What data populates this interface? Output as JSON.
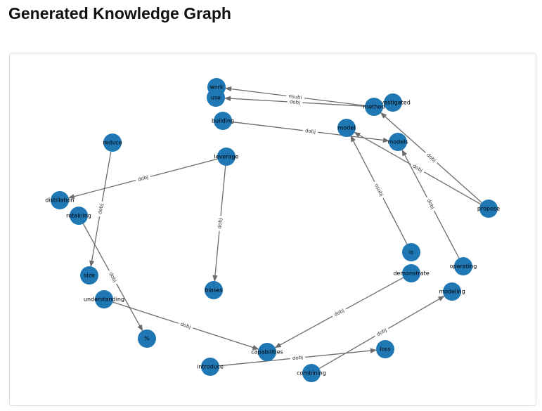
{
  "page": {
    "title": "Generated Knowledge Graph"
  },
  "graph": {
    "colors": {
      "node": "#1f77b4",
      "edge": "#6b6b6b"
    },
    "nodes": [
      {
        "id": "work",
        "label": "work"
      },
      {
        "id": "use",
        "label": "use"
      },
      {
        "id": "investigated",
        "label": "investigated"
      },
      {
        "id": "method",
        "label": "method"
      },
      {
        "id": "building",
        "label": "building"
      },
      {
        "id": "model",
        "label": "model"
      },
      {
        "id": "models",
        "label": "models"
      },
      {
        "id": "reduce",
        "label": "reduce"
      },
      {
        "id": "leverage",
        "label": "leverage"
      },
      {
        "id": "distillation",
        "label": "distillation"
      },
      {
        "id": "retaining",
        "label": "retaining"
      },
      {
        "id": "propose",
        "label": "propose"
      },
      {
        "id": "is",
        "label": "is"
      },
      {
        "id": "demonstrate",
        "label": "demonstrate"
      },
      {
        "id": "operating",
        "label": "operating"
      },
      {
        "id": "size",
        "label": "size"
      },
      {
        "id": "biases",
        "label": "biases"
      },
      {
        "id": "modeling",
        "label": "modeling"
      },
      {
        "id": "understanding",
        "label": "understanding"
      },
      {
        "id": "percent",
        "label": "%"
      },
      {
        "id": "capabilities",
        "label": "capabilities"
      },
      {
        "id": "loss",
        "label": "loss"
      },
      {
        "id": "introduce",
        "label": "introduce"
      },
      {
        "id": "combining",
        "label": "combining"
      }
    ],
    "edges": [
      {
        "from": "method",
        "to": "work",
        "label": "nsubj"
      },
      {
        "from": "method",
        "to": "use",
        "label": "dobj"
      },
      {
        "from": "building",
        "to": "models",
        "label": "dobj"
      },
      {
        "from": "propose",
        "to": "method",
        "label": "dobj"
      },
      {
        "from": "propose",
        "to": "model",
        "label": "dobj"
      },
      {
        "from": "leverage",
        "to": "distillation",
        "label": "dobj"
      },
      {
        "from": "leverage",
        "to": "biases",
        "label": "dobj"
      },
      {
        "from": "reduce",
        "to": "size",
        "label": "dobj"
      },
      {
        "from": "retaining",
        "to": "percent",
        "label": "dobj"
      },
      {
        "from": "is",
        "to": "model",
        "label": "nsubj"
      },
      {
        "from": "operating",
        "to": "models",
        "label": "dobj"
      },
      {
        "from": "demonstrate",
        "to": "capabilities",
        "label": "dobj"
      },
      {
        "from": "understanding",
        "to": "capabilities",
        "label": "dobj"
      },
      {
        "from": "introduce",
        "to": "loss",
        "label": "dobj"
      },
      {
        "from": "combining",
        "to": "modeling",
        "label": "dobj"
      }
    ]
  }
}
